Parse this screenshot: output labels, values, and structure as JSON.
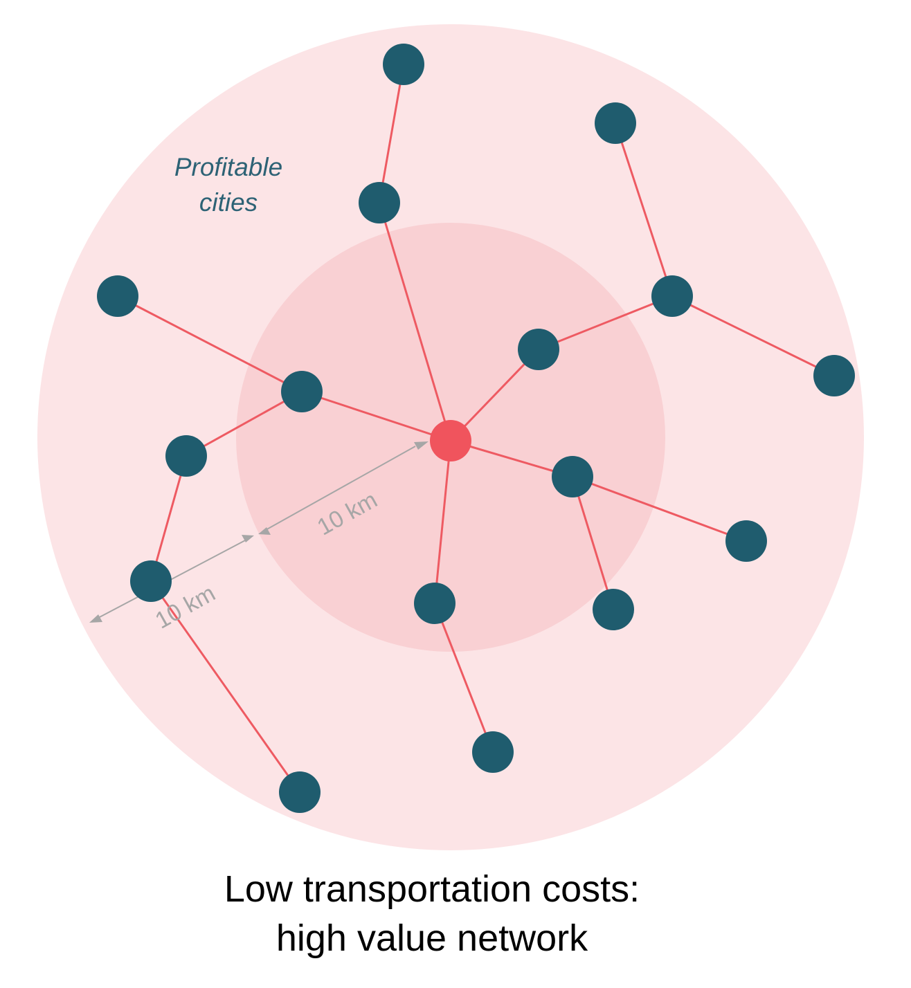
{
  "region_label": {
    "lines": [
      "Profitable",
      "cities"
    ]
  },
  "distance_labels": [
    "10 km",
    "10 km"
  ],
  "caption": {
    "lines": [
      "Low transportation costs:",
      "high value network"
    ]
  }
}
